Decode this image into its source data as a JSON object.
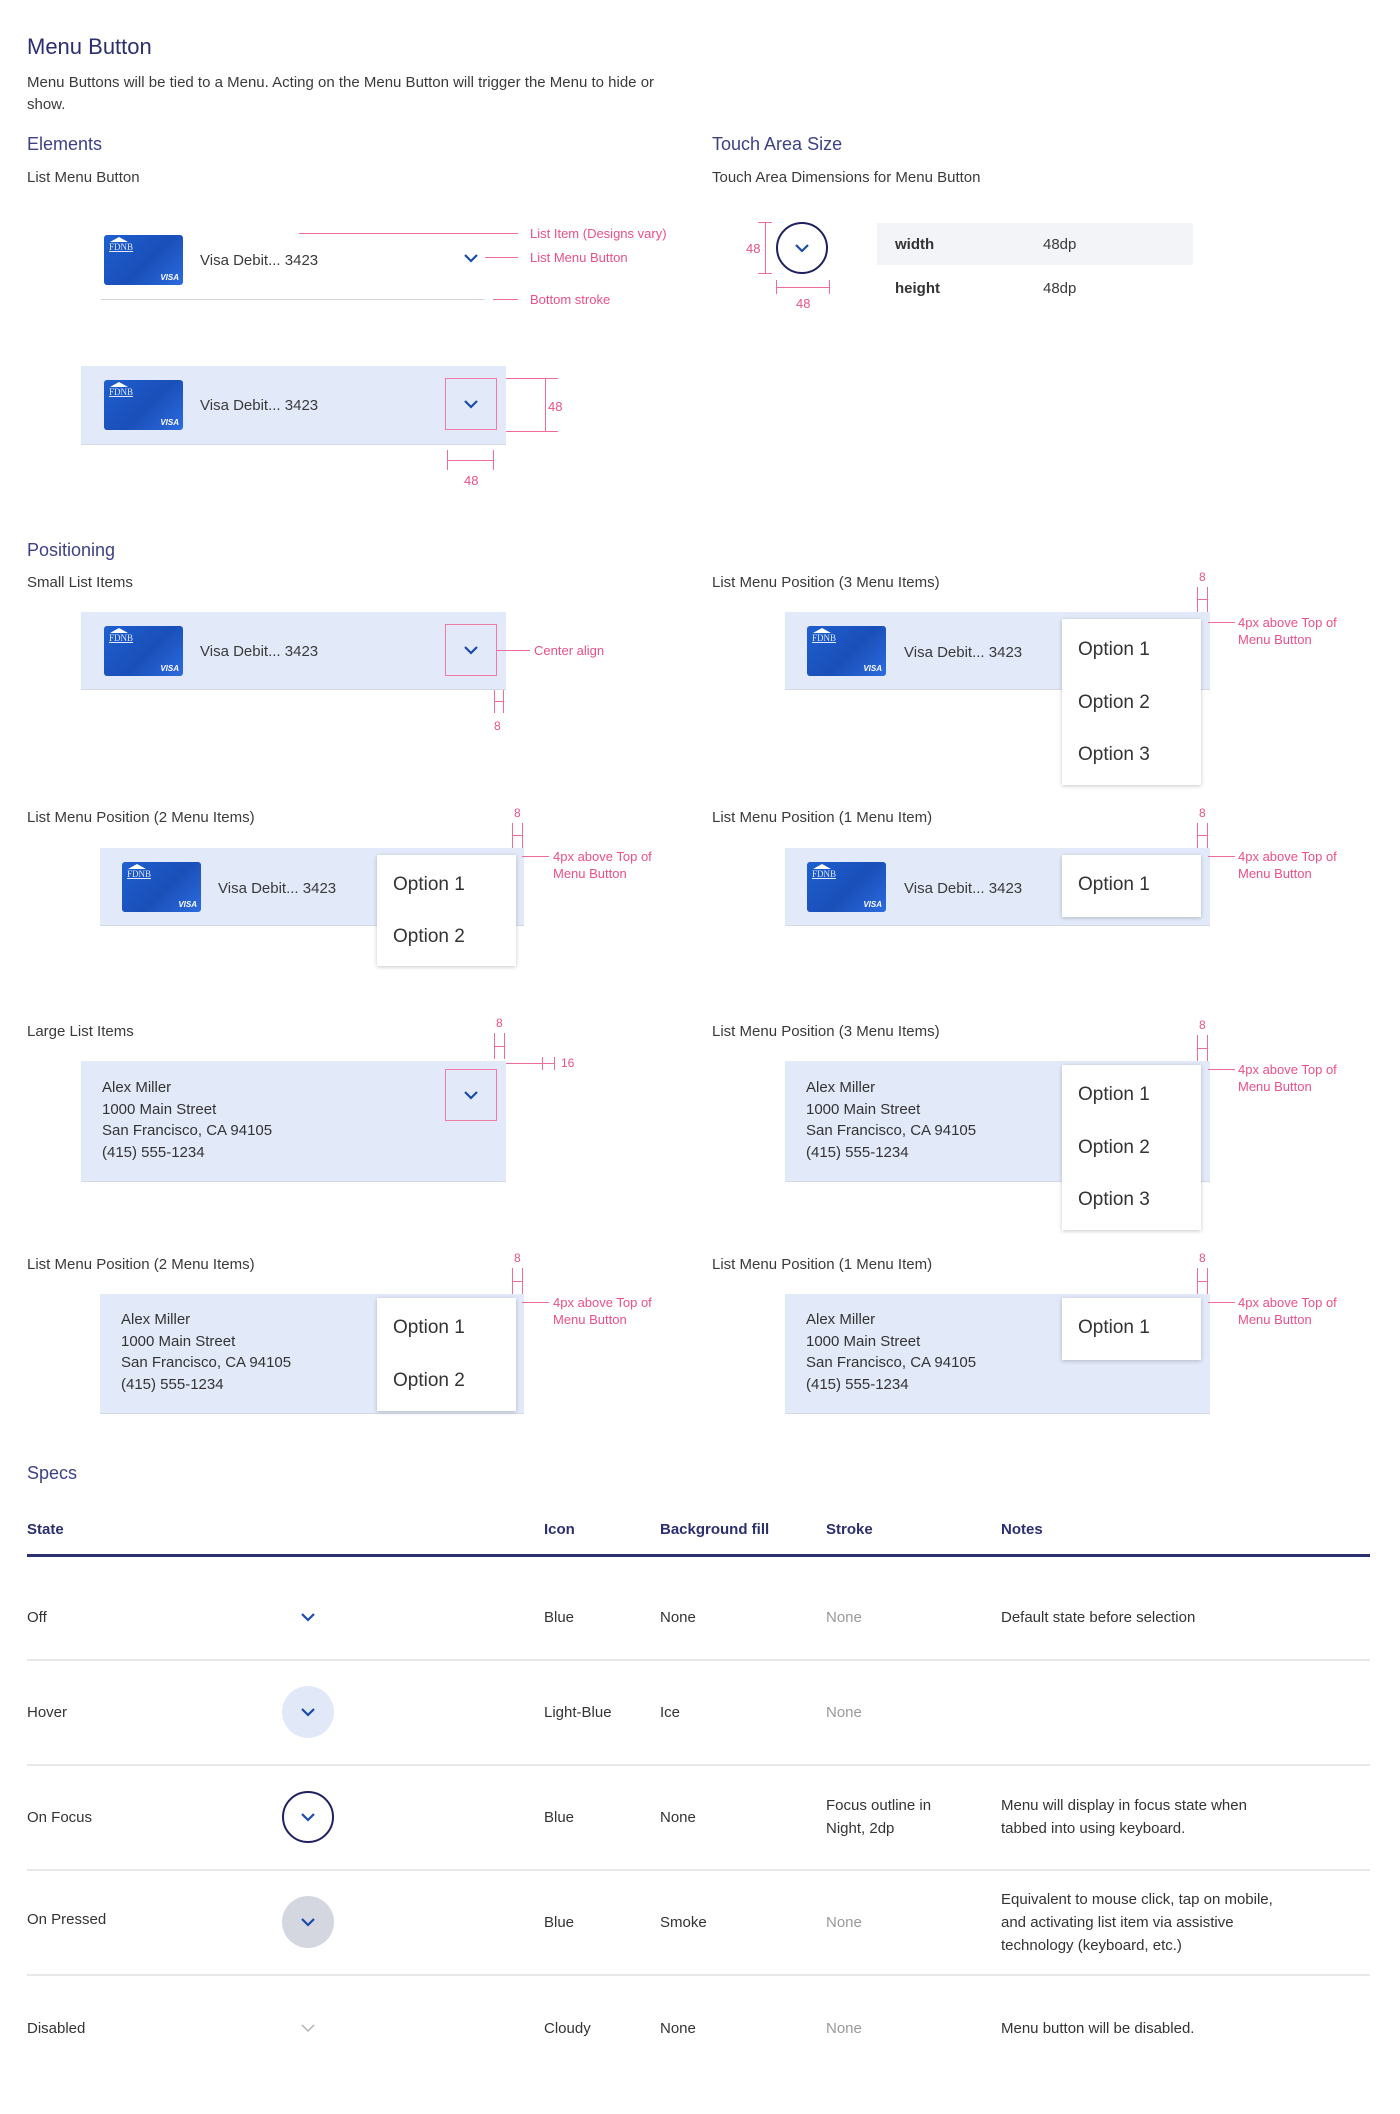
{
  "header": {
    "title": "Menu Button",
    "description": "Menu Buttons will be tied to a Menu. Acting on the Menu Button will trigger the Menu to hide or show."
  },
  "card": {
    "bank": "FDNB",
    "brand": "VISA",
    "label": "Visa Debit... 3423"
  },
  "elements": {
    "heading": "Elements",
    "subheading": "List Menu Button",
    "annotations": {
      "list_item": "List Item (Designs vary)",
      "list_menu_button": "List Menu Button",
      "bottom_stroke": "Bottom stroke"
    },
    "dim_48": "48"
  },
  "touch": {
    "heading": "Touch Area Size",
    "subheading": "Touch Area Dimensions for Menu Button",
    "dim_48": "48",
    "rows": [
      {
        "label": "width",
        "value": "48dp"
      },
      {
        "label": "height",
        "value": "48dp"
      }
    ]
  },
  "positioning": {
    "heading": "Positioning",
    "small_items": "Small List Items",
    "large_items": "Large List Items",
    "pos3": "List Menu Position (3 Menu Items)",
    "pos2": "List Menu Position (2 Menu Items)",
    "pos1": "List Menu Position (1 Menu Item)",
    "center_align": "Center align",
    "above_line1": "4px above Top of",
    "above_line2": "Menu Button",
    "dim_8": "8",
    "dim_16": "16"
  },
  "options": [
    "Option 1",
    "Option 2",
    "Option 3"
  ],
  "address": [
    "Alex Miller",
    "1000 Main Street",
    "San Francisco, CA 94105",
    "(415) 555-1234"
  ],
  "specs": {
    "heading": "Specs",
    "columns": [
      "State",
      "Icon",
      "Background fill",
      "Stroke",
      "Notes"
    ],
    "rows": [
      {
        "state": "Off",
        "icon": "Blue",
        "fill": "None",
        "stroke": "None",
        "notes": "Default state before selection"
      },
      {
        "state": "Hover",
        "icon": "Light-Blue",
        "fill": "Ice",
        "stroke": "None",
        "notes": ""
      },
      {
        "state": "On Focus",
        "icon": "Blue",
        "fill": "None",
        "stroke": [
          "Focus outline in",
          "Night, 2dp"
        ],
        "notes": [
          "Menu will display in focus state when",
          "tabbed into using keyboard."
        ]
      },
      {
        "state": "On Pressed",
        "icon": "Blue",
        "fill": "Smoke",
        "stroke": "None",
        "notes": [
          "Equivalent to mouse click, tap on mobile,",
          "and activating list item via assistive",
          "technology (keyboard, etc.)"
        ]
      },
      {
        "state": "Disabled",
        "icon": "Cloudy",
        "fill": "None",
        "stroke": "None",
        "notes": "Menu button will be disabled."
      }
    ]
  },
  "colors": {
    "title": "#2b2f6e",
    "annotation": "#e8508a",
    "list_bg": "#e2e9f8",
    "chevron_blue": "#1a4ba8",
    "hover_ice": "#e1e9f9",
    "pressed_smoke": "#d4d6e0",
    "disabled_cloudy": "#bbbbbb",
    "focus_night": "#1f2060"
  },
  "icons": {
    "chevron": "chevron-down-icon",
    "card": "credit-card-icon"
  }
}
